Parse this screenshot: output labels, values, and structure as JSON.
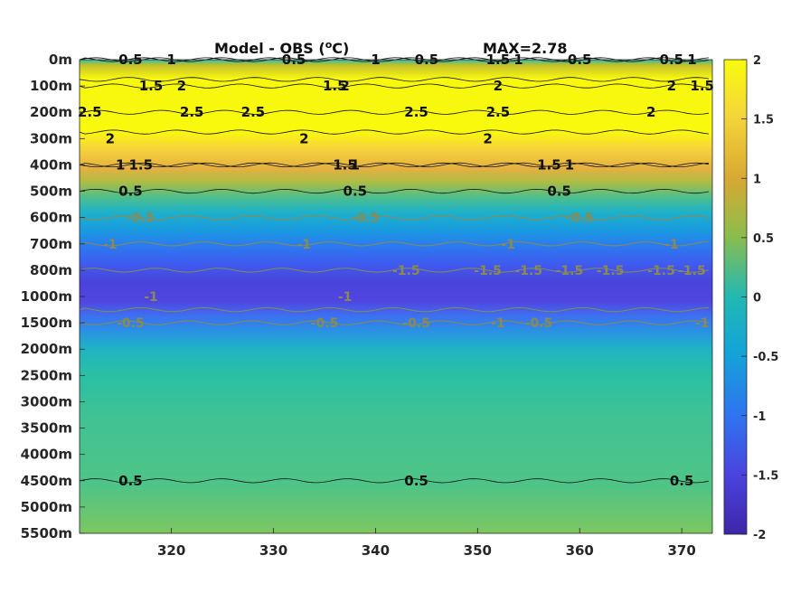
{
  "chart_data": {
    "type": "heatmap",
    "title": "Model - OBS (",
    "title_unit_sup": "o",
    "title_unit_tail": "C)",
    "max_label": "MAX=2.78",
    "x_ticks": [
      320,
      330,
      340,
      350,
      360,
      370
    ],
    "x_tick_labels": [
      "320",
      "330",
      "340",
      "350",
      "360",
      "370"
    ],
    "xlim": [
      311,
      373
    ],
    "y_tick_labels": [
      "0m",
      "100m",
      "200m",
      "300m",
      "400m",
      "500m",
      "600m",
      "700m",
      "800m",
      "1000m",
      "1500m",
      "2000m",
      "2500m",
      "3000m",
      "3500m",
      "4000m",
      "4500m",
      "5000m",
      "5500m"
    ],
    "colorbar": {
      "range": [
        -2,
        2
      ],
      "ticks": [
        2,
        1.5,
        1,
        0.5,
        0,
        -0.5,
        -1,
        -1.5,
        -2
      ],
      "tick_labels": [
        "2",
        "1.5",
        "1",
        "0.5",
        "0",
        "-0.5",
        "-1",
        "-1.5",
        "-2"
      ],
      "colormap": "parula"
    },
    "depth_profile": [
      {
        "depth": "0m",
        "value": 0.2
      },
      {
        "depth": "100m",
        "value": 1.9
      },
      {
        "depth": "200m",
        "value": 2.4
      },
      {
        "depth": "300m",
        "value": 1.9
      },
      {
        "depth": "400m",
        "value": 1.3
      },
      {
        "depth": "500m",
        "value": 0.4
      },
      {
        "depth": "600m",
        "value": -0.4
      },
      {
        "depth": "700m",
        "value": -1.1
      },
      {
        "depth": "800m",
        "value": -1.45
      },
      {
        "depth": "1000m",
        "value": -1.3
      },
      {
        "depth": "1500m",
        "value": -0.4
      },
      {
        "depth": "2000m",
        "value": 0.2
      },
      {
        "depth": "2500m",
        "value": 0.4
      },
      {
        "depth": "3000m",
        "value": 0.45
      },
      {
        "depth": "3500m",
        "value": 0.45
      },
      {
        "depth": "4000m",
        "value": 0.45
      },
      {
        "depth": "4500m",
        "value": 0.5
      },
      {
        "depth": "5000m",
        "value": 0.6
      },
      {
        "depth": "5500m",
        "value": 0.65
      }
    ],
    "contours": [
      {
        "level": 0.5,
        "labels": [
          {
            "x": 316,
            "depth": "0m"
          },
          {
            "x": 332,
            "depth": "0m"
          },
          {
            "x": 345,
            "depth": "0m"
          },
          {
            "x": 360,
            "depth": "0m"
          },
          {
            "x": 369,
            "depth": "0m"
          }
        ]
      },
      {
        "level": 1,
        "labels": [
          {
            "x": 320,
            "depth": "0m"
          },
          {
            "x": 340,
            "depth": "0m"
          },
          {
            "x": 354,
            "depth": "0m"
          },
          {
            "x": 371,
            "depth": "0m"
          }
        ]
      },
      {
        "level": 1.5,
        "labels": [
          {
            "x": 318,
            "depth": "100m"
          },
          {
            "x": 336,
            "depth": "100m"
          },
          {
            "x": 352,
            "depth": "0m"
          },
          {
            "x": 372,
            "depth": "100m"
          }
        ]
      },
      {
        "level": 2,
        "labels": [
          {
            "x": 321,
            "depth": "100m"
          },
          {
            "x": 337,
            "depth": "100m"
          },
          {
            "x": 352,
            "depth": "100m"
          },
          {
            "x": 369,
            "depth": "100m"
          }
        ]
      },
      {
        "level": 2.5,
        "labels": [
          {
            "x": 312,
            "depth": "200m"
          },
          {
            "x": 322,
            "depth": "200m"
          },
          {
            "x": 328,
            "depth": "200m"
          },
          {
            "x": 344,
            "depth": "200m"
          },
          {
            "x": 352,
            "depth": "200m"
          }
        ]
      },
      {
        "level": 2,
        "labels": [
          {
            "x": 314,
            "depth": "300m"
          },
          {
            "x": 333,
            "depth": "300m"
          },
          {
            "x": 351,
            "depth": "300m"
          },
          {
            "x": 367,
            "depth": "200m"
          }
        ]
      },
      {
        "level": 1.5,
        "labels": [
          {
            "x": 317,
            "depth": "400m"
          },
          {
            "x": 337,
            "depth": "400m"
          },
          {
            "x": 357,
            "depth": "400m"
          }
        ]
      },
      {
        "level": 1,
        "labels": [
          {
            "x": 315,
            "depth": "400m"
          },
          {
            "x": 338,
            "depth": "400m"
          },
          {
            "x": 359,
            "depth": "400m"
          }
        ]
      },
      {
        "level": 0.5,
        "labels": [
          {
            "x": 316,
            "depth": "500m"
          },
          {
            "x": 338,
            "depth": "500m"
          },
          {
            "x": 358,
            "depth": "500m"
          }
        ]
      },
      {
        "level": -0.5,
        "labels": [
          {
            "x": 317,
            "depth": "600m"
          },
          {
            "x": 339,
            "depth": "600m"
          },
          {
            "x": 360,
            "depth": "600m"
          }
        ]
      },
      {
        "level": -1,
        "labels": [
          {
            "x": 314,
            "depth": "700m"
          },
          {
            "x": 333,
            "depth": "700m"
          },
          {
            "x": 353,
            "depth": "700m"
          },
          {
            "x": 369,
            "depth": "700m"
          }
        ]
      },
      {
        "level": -1.5,
        "labels": [
          {
            "x": 343,
            "depth": "800m"
          },
          {
            "x": 351,
            "depth": "800m"
          },
          {
            "x": 355,
            "depth": "800m"
          },
          {
            "x": 359,
            "depth": "800m"
          },
          {
            "x": 363,
            "depth": "800m"
          },
          {
            "x": 368,
            "depth": "800m"
          },
          {
            "x": 371,
            "depth": "800m"
          }
        ]
      },
      {
        "level": -1,
        "labels": [
          {
            "x": 318,
            "depth": "1000m"
          },
          {
            "x": 337,
            "depth": "1000m"
          },
          {
            "x": 352,
            "depth": "1500m"
          },
          {
            "x": 372,
            "depth": "1500m"
          }
        ]
      },
      {
        "level": -0.5,
        "labels": [
          {
            "x": 316,
            "depth": "1500m"
          },
          {
            "x": 335,
            "depth": "1500m"
          },
          {
            "x": 344,
            "depth": "1500m"
          },
          {
            "x": 356,
            "depth": "1500m"
          }
        ]
      },
      {
        "level": 0.5,
        "labels": [
          {
            "x": 316,
            "depth": "4500m"
          },
          {
            "x": 344,
            "depth": "4500m"
          },
          {
            "x": 370,
            "depth": "4500m"
          }
        ]
      }
    ]
  }
}
